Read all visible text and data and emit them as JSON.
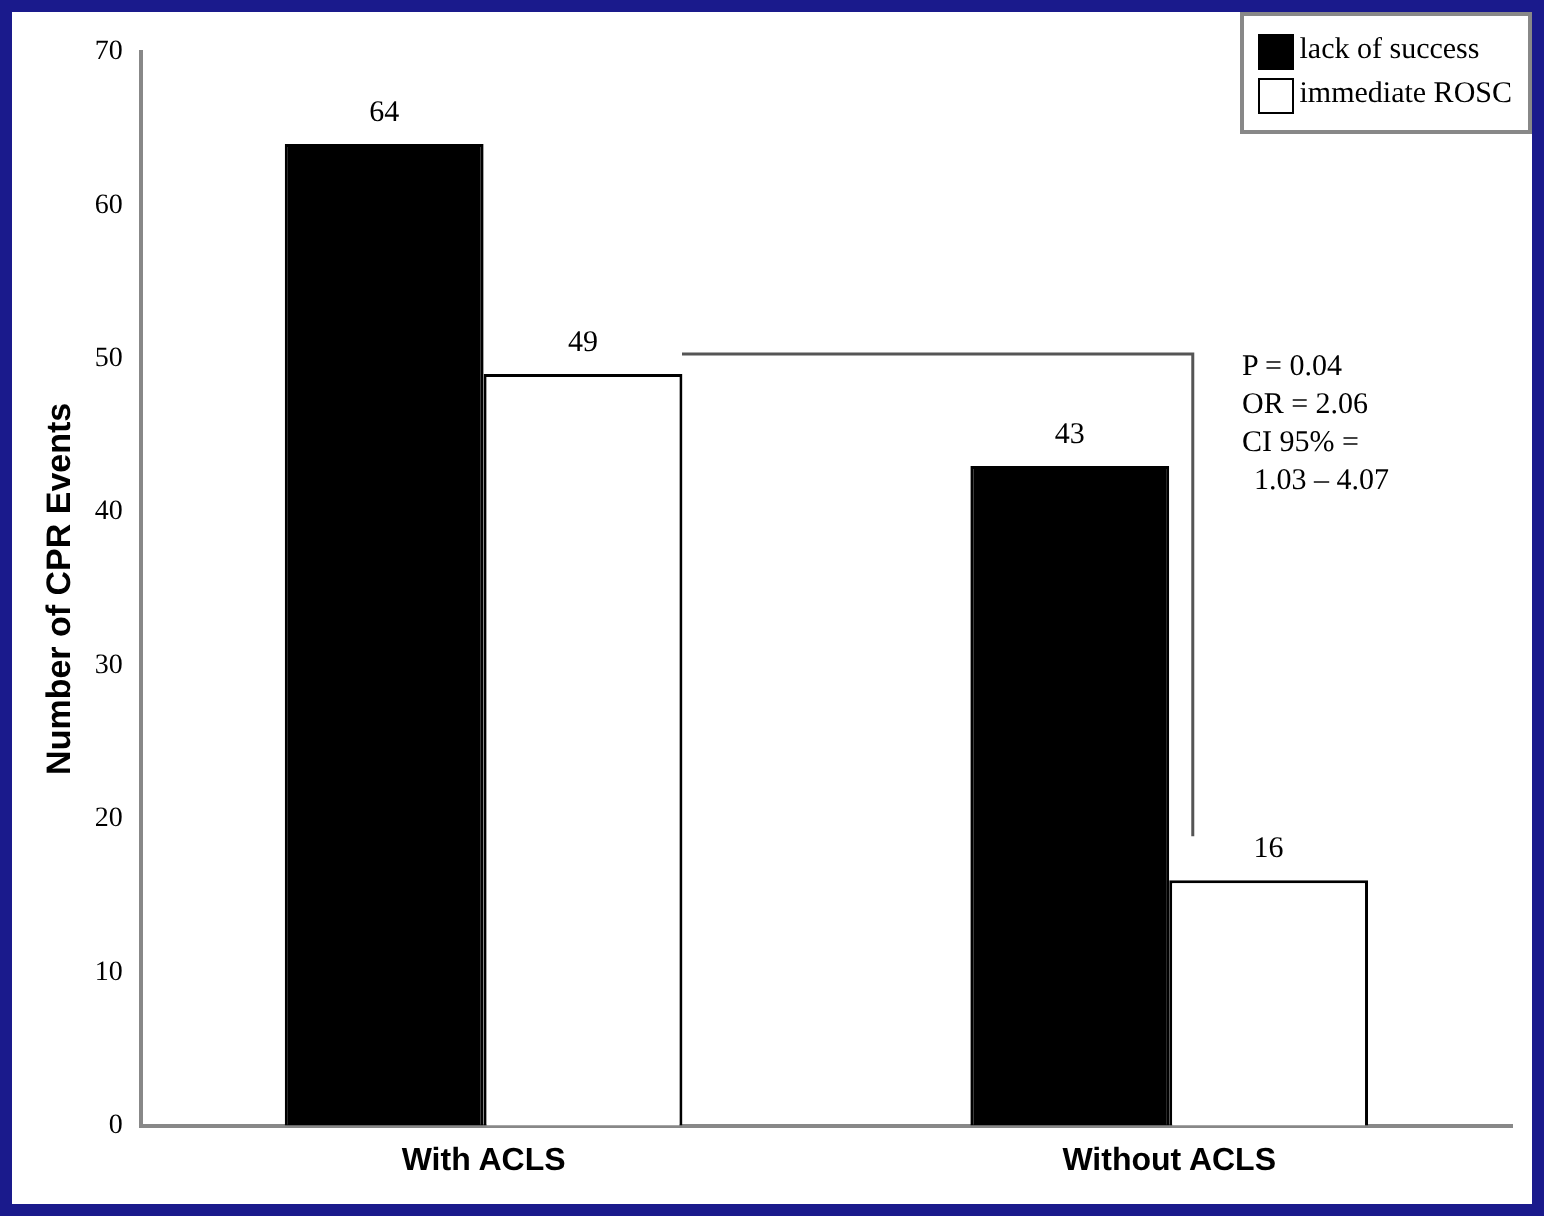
{
  "chart_data": {
    "type": "bar",
    "ylabel": "Number of CPR Events",
    "categories": [
      "With ACLS",
      "Without ACLS"
    ],
    "series": [
      {
        "name": "lack of success",
        "color": "#000000",
        "values": [
          64,
          43
        ]
      },
      {
        "name": "immediate ROSC",
        "color": "#ffffff",
        "values": [
          49,
          16
        ]
      }
    ],
    "ylim": [
      0,
      70
    ],
    "yticks": [
      0,
      10,
      20,
      30,
      40,
      50,
      60,
      70
    ],
    "grid": false,
    "legend": "top right",
    "data_labels": true,
    "annotations": [
      "P = 0.04",
      "OR = 2.06",
      "CI 95% =",
      "1.03 – 4.07"
    ]
  }
}
